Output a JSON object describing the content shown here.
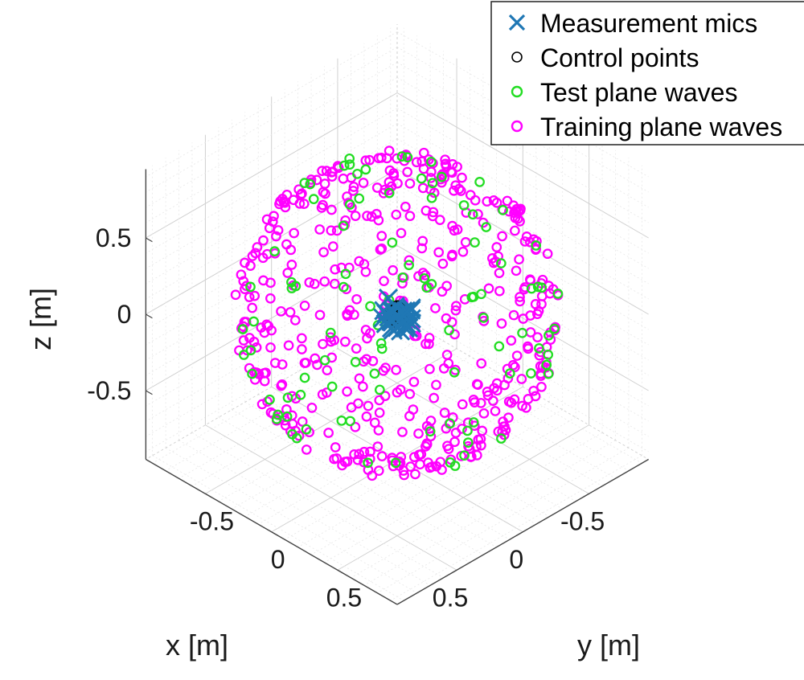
{
  "chart_data": {
    "type": "scatter3d",
    "view": "isometric",
    "xlabel": "x [m]",
    "ylabel": "y [m]",
    "zlabel": "z [m]",
    "xticks": [
      "-0.5",
      "0",
      "0.5"
    ],
    "yticks": [
      "-0.5",
      "0",
      "0.5"
    ],
    "zticks": [
      "-0.5",
      "0",
      "0.5"
    ],
    "xtick_values": [
      -0.5,
      0,
      0.5
    ],
    "ytick_values": [
      -0.5,
      0,
      0.5
    ],
    "ztick_values": [
      -0.5,
      0,
      0.5
    ],
    "xlim": [
      -0.95,
      0.95
    ],
    "ylim": [
      -0.95,
      0.95
    ],
    "zlim": [
      -0.95,
      0.95
    ],
    "grid": true,
    "legend_location": "top-right",
    "series": [
      {
        "name": "Measurement mics",
        "marker": "x",
        "color": "#1f77b4",
        "count": 32,
        "radius_m": 0.1,
        "seed": 11
      },
      {
        "name": "Control points",
        "marker": "o",
        "color": "#000000",
        "count": 400,
        "radius_m": 0.05,
        "seed": 23
      },
      {
        "name": "Test plane waves",
        "marker": "o",
        "color": "#22dd22",
        "count": 100,
        "radius_m": 0.85,
        "seed": 37
      },
      {
        "name": "Training plane waves",
        "marker": "o",
        "color": "#ff00ff",
        "count": 500,
        "radius_m": 0.85,
        "seed": 53
      }
    ],
    "legend": [
      "Measurement mics",
      "Control points",
      "Test plane waves",
      "Training plane waves"
    ]
  }
}
